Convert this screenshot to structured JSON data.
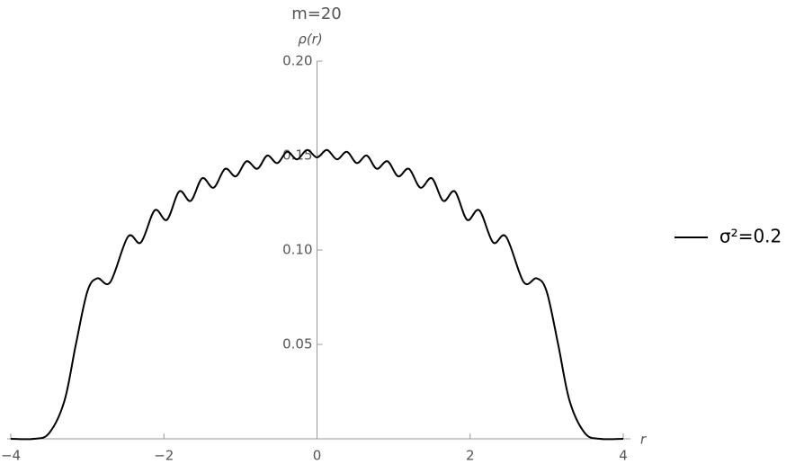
{
  "chart_data": {
    "type": "line",
    "title": "m=20",
    "ylabel": "ρ(r)",
    "xlabel": "r",
    "x": [
      -4,
      -3.7,
      -3.5,
      -3.3,
      -3.15,
      -3.0,
      -2.87,
      -2.7,
      -2.47,
      -2.3,
      -2.12,
      -1.96,
      -1.8,
      -1.65,
      -1.5,
      -1.35,
      -1.2,
      -1.06,
      -0.92,
      -0.78,
      -0.65,
      -0.52,
      -0.39,
      -0.26,
      -0.13,
      0,
      0.13,
      0.26,
      0.39,
      0.52,
      0.65,
      0.78,
      0.92,
      1.06,
      1.2,
      1.35,
      1.5,
      1.65,
      1.8,
      1.96,
      2.12,
      2.3,
      2.47,
      2.7,
      2.87,
      3.0,
      3.15,
      3.3,
      3.5,
      3.7,
      4
    ],
    "series": [
      {
        "name": "σ²=0.2",
        "color": "#000000",
        "values": [
          0,
          0,
          0.003,
          0.02,
          0.05,
          0.078,
          0.085,
          0.083,
          0.107,
          0.104,
          0.121,
          0.116,
          0.131,
          0.126,
          0.138,
          0.133,
          0.143,
          0.139,
          0.147,
          0.143,
          0.15,
          0.146,
          0.152,
          0.148,
          0.153,
          0.149,
          0.153,
          0.148,
          0.152,
          0.146,
          0.15,
          0.143,
          0.147,
          0.139,
          0.143,
          0.133,
          0.138,
          0.126,
          0.131,
          0.116,
          0.121,
          0.104,
          0.107,
          0.083,
          0.085,
          0.078,
          0.05,
          0.02,
          0.003,
          0,
          0
        ]
      }
    ],
    "xlim": [
      -4,
      4
    ],
    "ylim": [
      0,
      0.2
    ],
    "xticks": [
      {
        "value": -4,
        "label": "−4"
      },
      {
        "value": -2,
        "label": "−2"
      },
      0,
      2,
      4
    ],
    "yticks": [
      0.05,
      {
        "value": 0.1,
        "label": "0.10"
      },
      0.15,
      {
        "value": 0.2,
        "label": "0.20"
      }
    ]
  }
}
